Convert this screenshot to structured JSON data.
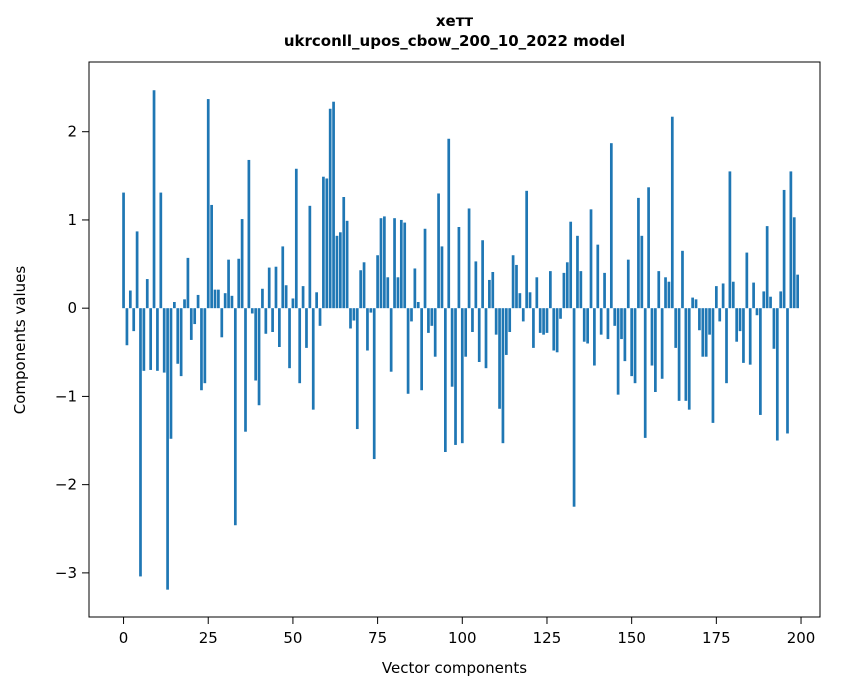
{
  "title": {
    "line1": "хетт",
    "line2": "ukrconll_upos_cbow_200_10_2022 model"
  },
  "chart_data": {
    "type": "bar",
    "title": "хетт",
    "subtitle": "ukrconll_upos_cbow_200_10_2022 model",
    "xlabel": "Vector components",
    "ylabel": "Components values",
    "n_components": 200,
    "x_ticks": [
      0,
      25,
      50,
      75,
      100,
      125,
      150,
      175,
      200
    ],
    "y_ticks": [
      2,
      1,
      0,
      -1,
      -2,
      -3
    ],
    "xlim": [
      -10.2,
      205.6
    ],
    "ylim": [
      -3.5,
      2.79
    ],
    "grid": false,
    "legend": "none",
    "bar_color": "#1f77b4",
    "spine_color": "#000000",
    "values": [
      1.31,
      -0.42,
      0.2,
      -0.26,
      0.87,
      -3.04,
      -0.71,
      0.33,
      -0.7,
      2.47,
      -0.71,
      1.31,
      -0.73,
      -3.19,
      -1.48,
      0.07,
      -0.63,
      -0.77,
      0.1,
      0.57,
      -0.36,
      -0.18,
      0.15,
      -0.93,
      -0.85,
      2.37,
      1.17,
      0.21,
      0.21,
      -0.33,
      0.17,
      0.55,
      0.14,
      -2.46,
      0.56,
      1.01,
      -1.4,
      1.68,
      -0.06,
      -0.82,
      -1.1,
      0.22,
      -0.29,
      0.46,
      -0.27,
      0.47,
      -0.44,
      0.7,
      0.26,
      -0.68,
      0.11,
      1.58,
      -0.85,
      0.25,
      -0.45,
      1.16,
      -1.15,
      0.18,
      -0.2,
      1.49,
      1.47,
      2.26,
      2.34,
      0.82,
      0.86,
      1.26,
      0.99,
      -0.23,
      -0.14,
      -1.37,
      0.43,
      0.52,
      -0.48,
      -0.05,
      -1.71,
      0.6,
      1.02,
      1.04,
      0.35,
      -0.72,
      1.02,
      0.35,
      1.0,
      0.97,
      -0.97,
      -0.15,
      0.45,
      0.07,
      -0.93,
      0.9,
      -0.28,
      -0.2,
      -0.55,
      1.3,
      0.7,
      -1.63,
      1.92,
      -0.89,
      -1.55,
      0.92,
      -1.53,
      -0.55,
      1.13,
      -0.27,
      0.53,
      -0.61,
      0.77,
      -0.68,
      0.32,
      0.41,
      -0.3,
      -1.14,
      -1.53,
      -0.53,
      -0.27,
      0.6,
      0.49,
      0.17,
      -0.15,
      1.33,
      0.18,
      -0.45,
      0.35,
      -0.28,
      -0.3,
      -0.28,
      0.42,
      -0.48,
      -0.5,
      -0.12,
      0.4,
      0.52,
      0.98,
      -2.25,
      0.82,
      0.42,
      -0.38,
      -0.4,
      1.12,
      -0.65,
      0.72,
      -0.3,
      0.4,
      -0.35,
      1.87,
      -0.2,
      -0.98,
      -0.35,
      -0.6,
      0.55,
      -0.77,
      -0.85,
      1.25,
      0.82,
      -1.47,
      1.37,
      -0.65,
      -0.95,
      0.42,
      -0.8,
      0.35,
      0.3,
      2.17,
      -0.45,
      -1.05,
      0.65,
      -1.05,
      -1.15,
      0.12,
      0.1,
      -0.25,
      -0.55,
      -0.55,
      -0.3,
      -1.3,
      0.25,
      -0.15,
      0.28,
      -0.85,
      1.55,
      0.3,
      -0.38,
      -0.26,
      -0.62,
      0.63,
      -0.64,
      0.29,
      -0.08,
      -1.21,
      0.19,
      0.93,
      0.13,
      -0.46,
      -1.5,
      0.19,
      1.34,
      -1.42,
      1.55,
      1.03,
      0.38
    ]
  }
}
